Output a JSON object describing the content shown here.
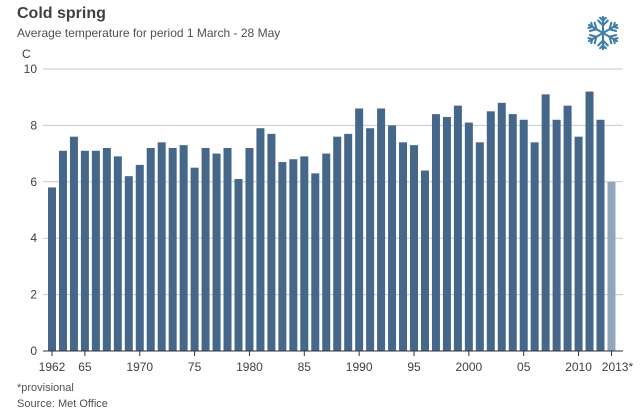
{
  "title": "Cold spring",
  "subtitle": "Average temperature for period 1 March - 28 May",
  "note": "*provisional",
  "source": "Source: Met Office",
  "icon": "snowflake-icon",
  "colors": {
    "bar": "#44678a",
    "provisional_bar": "#8fa7bd",
    "axis": "#333333",
    "grid": "#c8c8c8"
  },
  "chart_data": {
    "type": "bar",
    "title": "Cold spring",
    "subtitle": "Average temperature for period 1 March - 28 May",
    "xlabel": "",
    "ylabel": "C",
    "ylim": [
      0,
      10
    ],
    "yticks": [
      0,
      2,
      4,
      6,
      8,
      10
    ],
    "grid": true,
    "categories": [
      "1962",
      "1963",
      "1964",
      "1965",
      "1966",
      "1967",
      "1968",
      "1969",
      "1970",
      "1971",
      "1972",
      "1973",
      "1974",
      "1975",
      "1976",
      "1977",
      "1978",
      "1979",
      "1980",
      "1981",
      "1982",
      "1983",
      "1984",
      "1985",
      "1986",
      "1987",
      "1988",
      "1989",
      "1990",
      "1991",
      "1992",
      "1993",
      "1994",
      "1995",
      "1996",
      "1997",
      "1998",
      "1999",
      "2000",
      "2001",
      "2002",
      "2003",
      "2004",
      "2005",
      "2006",
      "2007",
      "2008",
      "2009",
      "2010",
      "2011",
      "2012",
      "2013"
    ],
    "x_tick_labels": [
      {
        "category": "1962",
        "label": "1962"
      },
      {
        "category": "1965",
        "label": "65"
      },
      {
        "category": "1970",
        "label": "1970"
      },
      {
        "category": "1975",
        "label": "75"
      },
      {
        "category": "1980",
        "label": "1980"
      },
      {
        "category": "1985",
        "label": "85"
      },
      {
        "category": "1990",
        "label": "1990"
      },
      {
        "category": "1995",
        "label": "95"
      },
      {
        "category": "2000",
        "label": "2000"
      },
      {
        "category": "2005",
        "label": "05"
      },
      {
        "category": "2010",
        "label": "2010"
      },
      {
        "category": "2013",
        "label": "2013*"
      }
    ],
    "values": [
      5.8,
      7.1,
      7.6,
      7.1,
      7.1,
      7.2,
      6.9,
      6.2,
      6.6,
      7.2,
      7.4,
      7.2,
      7.3,
      6.5,
      7.2,
      7.0,
      7.2,
      6.1,
      7.2,
      7.9,
      7.7,
      6.7,
      6.8,
      6.9,
      6.3,
      7.0,
      7.6,
      7.7,
      8.6,
      7.9,
      8.6,
      8.0,
      7.4,
      7.3,
      6.4,
      8.4,
      8.3,
      8.7,
      8.1,
      7.4,
      8.5,
      8.8,
      8.4,
      8.2,
      7.4,
      9.1,
      8.2,
      8.7,
      7.6,
      9.2,
      8.2,
      6.0
    ],
    "provisional": [
      "2013"
    ]
  }
}
